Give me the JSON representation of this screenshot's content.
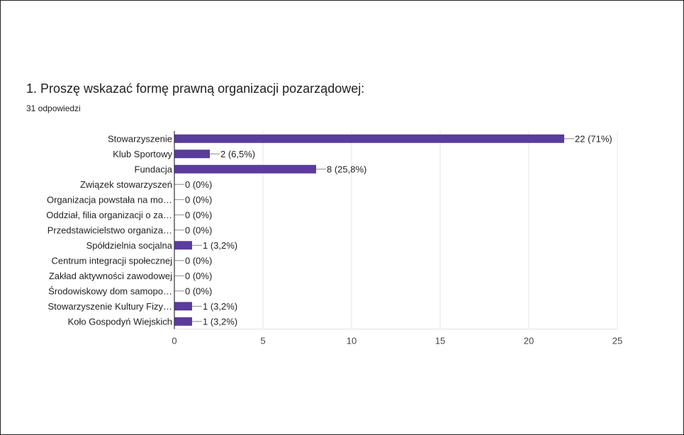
{
  "question": {
    "title": "1. Proszę wskazać formę prawną organizacji pozarządowej:",
    "responses": "31 odpowiedzi"
  },
  "colors": {
    "bar": "#5b3b9b",
    "grid": "#e6e6e6",
    "axis": "#333333",
    "leader": "#888888"
  },
  "chart_data": {
    "type": "bar",
    "orientation": "horizontal",
    "categories": [
      "Stowarzyszenie",
      "Klub Sportowy",
      "Fundacja",
      "Związek stowarzyszeń",
      "Organizacja powstała na mo…",
      "Oddział, filia organizacji o za…",
      "Przedstawicielstwo organiza…",
      "Spółdzielnia socjalna",
      "Centrum integracji społecznej",
      "Zakład aktywności zawodowej",
      "Środowiskowy dom samopo…",
      "Stowarzyszenie Kultury Fizy…",
      "Koło Gospodyń Wiejskich"
    ],
    "values": [
      22,
      2,
      8,
      0,
      0,
      0,
      0,
      1,
      0,
      0,
      0,
      1,
      1
    ],
    "value_labels": [
      "22 (71%)",
      "2 (6,5%)",
      "8 (25,8%)",
      "0 (0%)",
      "0 (0%)",
      "0 (0%)",
      "0 (0%)",
      "1 (3,2%)",
      "0 (0%)",
      "0 (0%)",
      "0 (0%)",
      "1 (3,2%)",
      "1 (3,2%)"
    ],
    "xlim": [
      0,
      25
    ],
    "xticks": [
      0,
      5,
      10,
      15,
      20,
      25
    ],
    "xtick_labels": [
      "0",
      "5",
      "10",
      "15",
      "20",
      "25"
    ],
    "grid": true
  }
}
